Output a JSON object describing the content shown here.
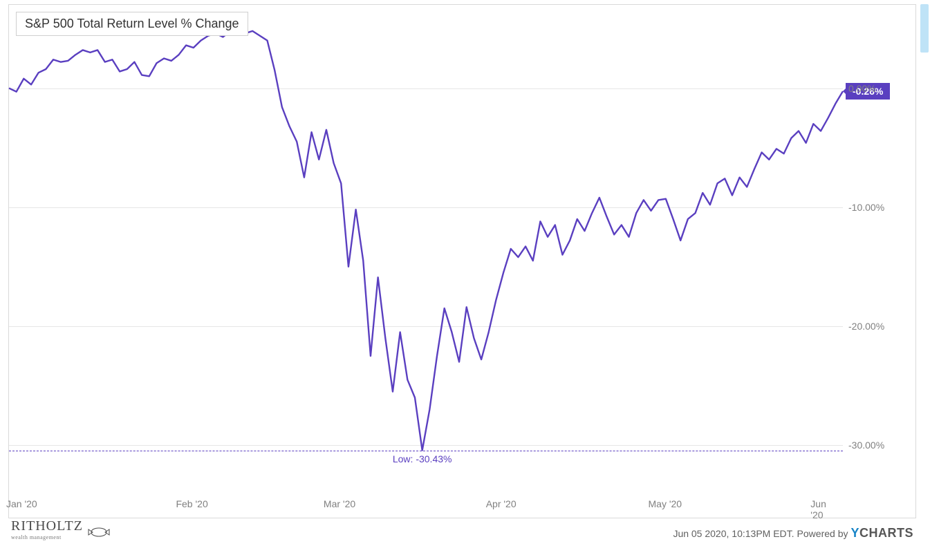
{
  "chart": {
    "type": "line",
    "title": "S&P 500 Total Return Level % Change",
    "line_color": "#5a3fc0",
    "line_width": 2.4,
    "background_color": "#ffffff",
    "grid_color": "#e6e6e6",
    "border_color": "#d9d9d9",
    "y_axis": {
      "min": -34,
      "max": 7,
      "ticks": [
        0,
        -10,
        -20,
        -30
      ],
      "tick_labels": [
        "0.00%",
        "-10.00%",
        "-20.00%",
        "-30.00%"
      ],
      "label_color": "#808080",
      "label_fontsize": 14
    },
    "x_axis": {
      "min": 0,
      "max": 113,
      "ticks": [
        0,
        23,
        43,
        65,
        87,
        109
      ],
      "tick_labels": [
        "Jan '20",
        "Feb '20",
        "Mar '20",
        "Apr '20",
        "May '20",
        "Jun '20"
      ],
      "label_color": "#808080",
      "label_fontsize": 14
    },
    "low_marker": {
      "value": -30.43,
      "label": "Low: -30.43%",
      "line_dash": "4,4",
      "color": "#5a3fc0"
    },
    "end_value_badge": {
      "value": -0.26,
      "label": "-0.26%",
      "bg_color": "#5a3fc0",
      "text_color": "#ffffff"
    },
    "series": [
      {
        "x": 0,
        "y": 0.0
      },
      {
        "x": 1,
        "y": -0.3
      },
      {
        "x": 2,
        "y": 0.8
      },
      {
        "x": 3,
        "y": 0.3
      },
      {
        "x": 4,
        "y": 1.3
      },
      {
        "x": 5,
        "y": 1.6
      },
      {
        "x": 6,
        "y": 2.4
      },
      {
        "x": 7,
        "y": 2.2
      },
      {
        "x": 8,
        "y": 2.3
      },
      {
        "x": 9,
        "y": 2.8
      },
      {
        "x": 10,
        "y": 3.2
      },
      {
        "x": 11,
        "y": 3.0
      },
      {
        "x": 12,
        "y": 3.2
      },
      {
        "x": 13,
        "y": 2.2
      },
      {
        "x": 14,
        "y": 2.4
      },
      {
        "x": 15,
        "y": 1.4
      },
      {
        "x": 16,
        "y": 1.6
      },
      {
        "x": 17,
        "y": 2.2
      },
      {
        "x": 18,
        "y": 1.1
      },
      {
        "x": 19,
        "y": 1.0
      },
      {
        "x": 20,
        "y": 2.1
      },
      {
        "x": 21,
        "y": 2.5
      },
      {
        "x": 22,
        "y": 2.3
      },
      {
        "x": 23,
        "y": 2.8
      },
      {
        "x": 24,
        "y": 3.6
      },
      {
        "x": 25,
        "y": 3.4
      },
      {
        "x": 26,
        "y": 4.0
      },
      {
        "x": 27,
        "y": 4.4
      },
      {
        "x": 28,
        "y": 4.6
      },
      {
        "x": 29,
        "y": 4.3
      },
      {
        "x": 30,
        "y": 4.8
      },
      {
        "x": 31,
        "y": 5.0
      },
      {
        "x": 32,
        "y": 4.6
      },
      {
        "x": 33,
        "y": 4.8
      },
      {
        "x": 34,
        "y": 4.4
      },
      {
        "x": 35,
        "y": 4.0
      },
      {
        "x": 36,
        "y": 1.5
      },
      {
        "x": 37,
        "y": -1.6
      },
      {
        "x": 38,
        "y": -3.2
      },
      {
        "x": 39,
        "y": -4.5
      },
      {
        "x": 40,
        "y": -7.5
      },
      {
        "x": 41,
        "y": -3.7
      },
      {
        "x": 42,
        "y": -6.0
      },
      {
        "x": 43,
        "y": -3.5
      },
      {
        "x": 44,
        "y": -6.3
      },
      {
        "x": 45,
        "y": -8.0
      },
      {
        "x": 46,
        "y": -15.0
      },
      {
        "x": 47,
        "y": -10.2
      },
      {
        "x": 48,
        "y": -14.5
      },
      {
        "x": 49,
        "y": -22.5
      },
      {
        "x": 50,
        "y": -15.9
      },
      {
        "x": 51,
        "y": -21.0
      },
      {
        "x": 52,
        "y": -25.5
      },
      {
        "x": 53,
        "y": -20.5
      },
      {
        "x": 54,
        "y": -24.5
      },
      {
        "x": 55,
        "y": -26.0
      },
      {
        "x": 56,
        "y": -30.43
      },
      {
        "x": 57,
        "y": -27.0
      },
      {
        "x": 58,
        "y": -22.5
      },
      {
        "x": 59,
        "y": -18.5
      },
      {
        "x": 60,
        "y": -20.5
      },
      {
        "x": 61,
        "y": -23.0
      },
      {
        "x": 62,
        "y": -18.4
      },
      {
        "x": 63,
        "y": -21.0
      },
      {
        "x": 64,
        "y": -22.8
      },
      {
        "x": 65,
        "y": -20.5
      },
      {
        "x": 66,
        "y": -17.8
      },
      {
        "x": 67,
        "y": -15.5
      },
      {
        "x": 68,
        "y": -13.5
      },
      {
        "x": 69,
        "y": -14.2
      },
      {
        "x": 70,
        "y": -13.3
      },
      {
        "x": 71,
        "y": -14.5
      },
      {
        "x": 72,
        "y": -11.2
      },
      {
        "x": 73,
        "y": -12.5
      },
      {
        "x": 74,
        "y": -11.5
      },
      {
        "x": 75,
        "y": -14.0
      },
      {
        "x": 76,
        "y": -12.8
      },
      {
        "x": 77,
        "y": -11.0
      },
      {
        "x": 78,
        "y": -12.0
      },
      {
        "x": 79,
        "y": -10.5
      },
      {
        "x": 80,
        "y": -9.2
      },
      {
        "x": 81,
        "y": -10.8
      },
      {
        "x": 82,
        "y": -12.3
      },
      {
        "x": 83,
        "y": -11.5
      },
      {
        "x": 84,
        "y": -12.5
      },
      {
        "x": 85,
        "y": -10.5
      },
      {
        "x": 86,
        "y": -9.4
      },
      {
        "x": 87,
        "y": -10.3
      },
      {
        "x": 88,
        "y": -9.4
      },
      {
        "x": 89,
        "y": -9.3
      },
      {
        "x": 90,
        "y": -11.0
      },
      {
        "x": 91,
        "y": -12.8
      },
      {
        "x": 92,
        "y": -11.0
      },
      {
        "x": 93,
        "y": -10.5
      },
      {
        "x": 94,
        "y": -8.8
      },
      {
        "x": 95,
        "y": -9.8
      },
      {
        "x": 96,
        "y": -8.0
      },
      {
        "x": 97,
        "y": -7.6
      },
      {
        "x": 98,
        "y": -9.0
      },
      {
        "x": 99,
        "y": -7.5
      },
      {
        "x": 100,
        "y": -8.3
      },
      {
        "x": 101,
        "y": -6.8
      },
      {
        "x": 102,
        "y": -5.4
      },
      {
        "x": 103,
        "y": -6.0
      },
      {
        "x": 104,
        "y": -5.1
      },
      {
        "x": 105,
        "y": -5.5
      },
      {
        "x": 106,
        "y": -4.2
      },
      {
        "x": 107,
        "y": -3.6
      },
      {
        "x": 108,
        "y": -4.6
      },
      {
        "x": 109,
        "y": -3.0
      },
      {
        "x": 110,
        "y": -3.6
      },
      {
        "x": 111,
        "y": -2.5
      },
      {
        "x": 112,
        "y": -1.3
      },
      {
        "x": 113,
        "y": -0.26
      }
    ]
  },
  "footer": {
    "brand_name": "RITHOLTZ",
    "brand_sub": "wealth management",
    "timestamp": "Jun 05 2020, 10:13PM EDT.",
    "powered_by": "Powered by",
    "ycharts_y": "Y",
    "ycharts_rest": "CHARTS"
  }
}
